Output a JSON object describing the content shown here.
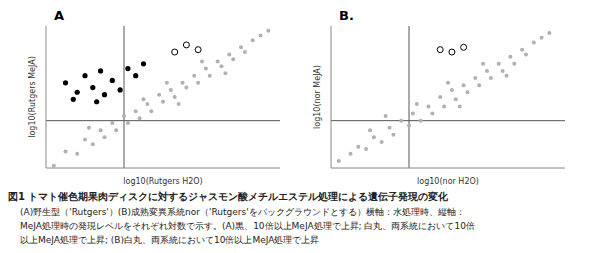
{
  "chart_data": [
    {
      "type": "scatter",
      "title": "A",
      "x_label": "log10(Rutgers H2O)",
      "y_label": "log10(Rutgers MeJA)",
      "xlim": [
        -2,
        4
      ],
      "ylim": [
        -2,
        4
      ],
      "xticks": [
        0
      ],
      "yticks": [
        0
      ],
      "tick_labels": false,
      "grid": false,
      "series": [
        {
          "color": "#b0b0b0",
          "marker": "dot",
          "points": [
            [
              -1.8,
              -1.9
            ],
            [
              -1.5,
              -1.3
            ],
            [
              -1.2,
              -1.4
            ],
            [
              -1,
              -0.8
            ],
            [
              -0.8,
              -1
            ],
            [
              -0.6,
              -0.4
            ],
            [
              -0.5,
              -0.7
            ],
            [
              -0.3,
              -0.1
            ],
            [
              -0.2,
              -0.4
            ],
            [
              0,
              0.2
            ],
            [
              0.1,
              -0.1
            ],
            [
              0.3,
              0.4
            ],
            [
              0.4,
              0.1
            ],
            [
              0.6,
              0.7
            ],
            [
              0.7,
              0.4
            ],
            [
              0.9,
              1.1
            ],
            [
              1,
              0.8
            ],
            [
              1.2,
              1.3
            ],
            [
              1.3,
              1
            ],
            [
              1.5,
              1.6
            ],
            [
              1.6,
              1.4
            ],
            [
              1.8,
              1.9
            ],
            [
              1.9,
              1.6
            ],
            [
              2.1,
              2.2
            ],
            [
              2.2,
              1.9
            ],
            [
              2.4,
              2.5
            ],
            [
              2.5,
              2.3
            ],
            [
              2.7,
              2.8
            ],
            [
              2.8,
              2.6
            ],
            [
              3,
              3.1
            ],
            [
              3.1,
              2.9
            ],
            [
              3.3,
              3.4
            ],
            [
              3.5,
              3.6
            ],
            [
              3.7,
              3.8
            ],
            [
              0.5,
              0.9
            ],
            [
              1.1,
              1.6
            ],
            [
              2,
              2.5
            ],
            [
              -0.9,
              -0.3
            ],
            [
              1.4,
              0.7
            ],
            [
              2.6,
              2.0
            ]
          ]
        },
        {
          "color": "#000000",
          "marker": "filled",
          "points": [
            [
              -1.5,
              1.6
            ],
            [
              -1.2,
              1.2
            ],
            [
              -1,
              1.9
            ],
            [
              -0.8,
              1.4
            ],
            [
              -0.6,
              2.1
            ],
            [
              -0.5,
              1.1
            ],
            [
              -0.3,
              1.7
            ],
            [
              -0.1,
              1.3
            ],
            [
              0.1,
              2.2
            ],
            [
              -1.3,
              0.9
            ],
            [
              0.3,
              1.9
            ],
            [
              -0.7,
              0.8
            ],
            [
              0.5,
              2.4
            ]
          ]
        },
        {
          "color": "#000000",
          "marker": "open",
          "points": [
            [
              1.3,
              2.9
            ],
            [
              1.6,
              3.2
            ],
            [
              1.9,
              3.0
            ]
          ]
        }
      ]
    },
    {
      "type": "scatter",
      "title": "B.",
      "x_label": "log10(nor H2O)",
      "y_label": "log10(nor MeJA)",
      "xlim": [
        -2,
        4
      ],
      "ylim": [
        -2,
        4
      ],
      "xticks": [
        0
      ],
      "yticks": [
        0
      ],
      "tick_labels": false,
      "grid": false,
      "series": [
        {
          "color": "#b0b0b0",
          "marker": "dot",
          "points": [
            [
              -1.8,
              -1.7
            ],
            [
              -1.5,
              -1.4
            ],
            [
              -1.3,
              -1.1
            ],
            [
              -1.1,
              -1.2
            ],
            [
              -0.9,
              -0.7
            ],
            [
              -0.7,
              -0.9
            ],
            [
              -0.5,
              -0.3
            ],
            [
              -0.4,
              -0.6
            ],
            [
              -0.2,
              0
            ],
            [
              0,
              -0.2
            ],
            [
              0.1,
              0.3
            ],
            [
              0.3,
              0
            ],
            [
              0.5,
              0.6
            ],
            [
              0.6,
              0.3
            ],
            [
              0.8,
              1
            ],
            [
              0.9,
              0.6
            ],
            [
              1.1,
              1.3
            ],
            [
              1.2,
              0.9
            ],
            [
              1.4,
              1.5
            ],
            [
              1.5,
              1.2
            ],
            [
              1.7,
              1.8
            ],
            [
              1.8,
              1.5
            ],
            [
              2,
              2.1
            ],
            [
              2.1,
              1.8
            ],
            [
              2.3,
              2.4
            ],
            [
              2.4,
              2.1
            ],
            [
              2.6,
              2.7
            ],
            [
              2.7,
              2.4
            ],
            [
              2.9,
              3
            ],
            [
              3,
              2.8
            ],
            [
              3.2,
              3.3
            ],
            [
              3.4,
              3.5
            ],
            [
              3.6,
              3.7
            ],
            [
              0.2,
              0.7
            ],
            [
              1,
              1.6
            ],
            [
              1.9,
              2.4
            ],
            [
              -1,
              -0.4
            ],
            [
              1.3,
              0.6
            ],
            [
              2.5,
              1.9
            ],
            [
              -0.6,
              0.2
            ]
          ]
        },
        {
          "color": "#000000",
          "marker": "open",
          "points": [
            [
              0.8,
              3.0
            ],
            [
              1.1,
              2.9
            ],
            [
              1.4,
              3.1
            ]
          ]
        }
      ]
    }
  ],
  "caption": {
    "title": "図1 トマト催色期果肉ディスクに対するジャスモン酸メチルエステル処理による遺伝子発現の変化",
    "lines": [
      "(A)野生型（'Rutgers'）(B)成熟変異系統nor（'Rutgers'をバックグラウンドとする）横軸：水処理時、縦軸：",
      "MeJA処理時の発現レベルをそれぞれ対数で示す。(A)黒、10倍以上MeJA処理で上昇; 白丸、両系統において10倍",
      "以上MeJA処理で上昇; (B)白丸、両系統において10倍以上MeJA処理で上昇"
    ]
  }
}
